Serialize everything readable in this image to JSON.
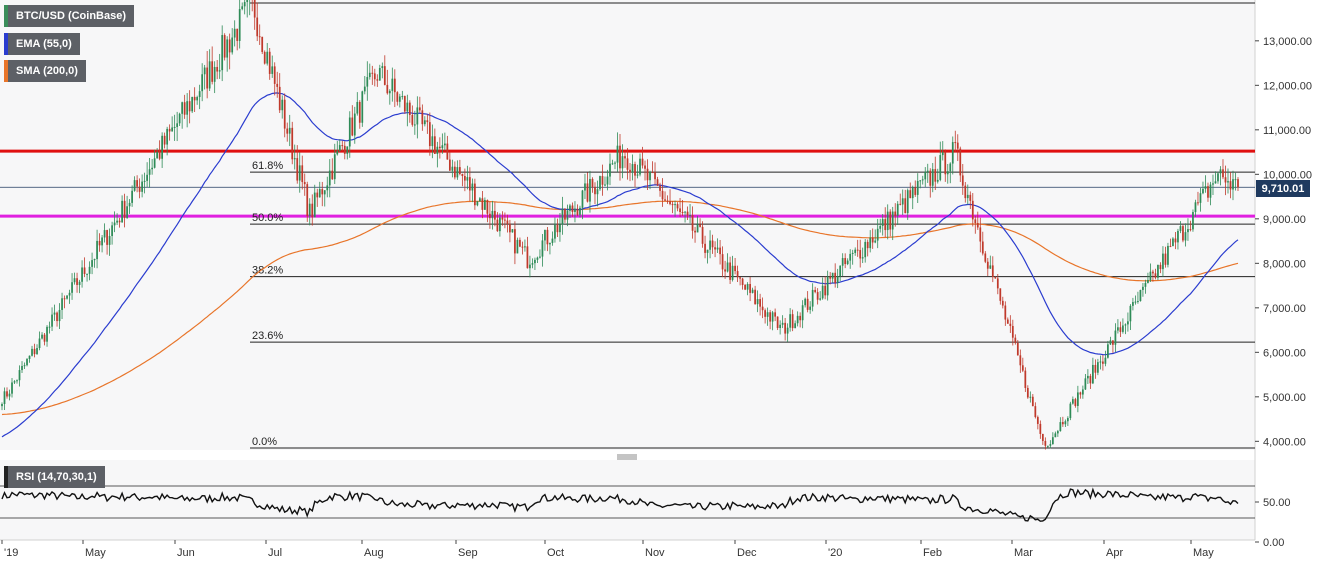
{
  "symbol_label": "BTC/USD (CoinBase)",
  "indicators": {
    "ema": {
      "label": "EMA (55,0)",
      "color": "#2a3ccf"
    },
    "sma": {
      "label": "SMA (200,0)",
      "color": "#e8752a"
    },
    "rsi": {
      "label": "RSI (14,70,30,1)"
    }
  },
  "last_price_label": "9,710.01",
  "colors": {
    "up": "#2e8b57",
    "down": "#c0392b",
    "resistance": "#e01010",
    "support": "#e020e0",
    "price_line": "#1f3a5f"
  },
  "chart_data": [
    {
      "type": "candlestick",
      "title": "BTC/USD (CoinBase)",
      "x_ticks": [
        "'19",
        "May",
        "Jun",
        "Jul",
        "Aug",
        "Sep",
        "Oct",
        "Nov",
        "Dec",
        "'20",
        "Feb",
        "Mar",
        "Apr",
        "May"
      ],
      "y_ticks": [
        "4,000.00",
        "5,000.00",
        "6,000.00",
        "7,000.00",
        "8,000.00",
        "9,000.00",
        "10,000.00",
        "11,000.00",
        "12,000.00",
        "13,000.00"
      ],
      "ylim": [
        3850,
        13850
      ],
      "last_price": 9710.01,
      "key_points": [
        {
          "date": "Apr 2019",
          "price": 5000
        },
        {
          "date": "Jun 26 2019",
          "price": 13850
        },
        {
          "date": "Jul 17 2019",
          "price": 9100
        },
        {
          "date": "Aug 6 2019",
          "price": 12300
        },
        {
          "date": "Sep 24 2019",
          "price": 8100
        },
        {
          "date": "Oct 25 2019",
          "price": 10500
        },
        {
          "date": "Dec 18 2019",
          "price": 6500
        },
        {
          "date": "Feb 13 2020",
          "price": 10500
        },
        {
          "date": "Mar 12 2020",
          "price": 3850
        },
        {
          "date": "May 7 2020",
          "price": 10000
        },
        {
          "date": "May 14 2020",
          "price": 9710
        }
      ],
      "series": [
        {
          "name": "EMA (55,0)"
        },
        {
          "name": "SMA (200,0)"
        }
      ],
      "horizontal_lines": [
        {
          "price": 10520,
          "label": "",
          "color": "#e01010"
        },
        {
          "price": 9060,
          "label": "",
          "color": "#e020e0"
        },
        {
          "price": 13850,
          "label": ""
        },
        {
          "price": 10050,
          "label": "61.8%"
        },
        {
          "price": 8880,
          "label": "50.0%"
        },
        {
          "price": 7700,
          "label": "38.2%"
        },
        {
          "price": 6230,
          "label": "23.6%"
        },
        {
          "price": 3850,
          "label": "0.0%"
        }
      ],
      "grid": false
    },
    {
      "type": "line",
      "title": "RSI (14,70,30,1)",
      "y_ticks": [
        "0.00",
        "50.00"
      ],
      "ylim": [
        0,
        100
      ],
      "levels": [
        70,
        30
      ]
    }
  ]
}
